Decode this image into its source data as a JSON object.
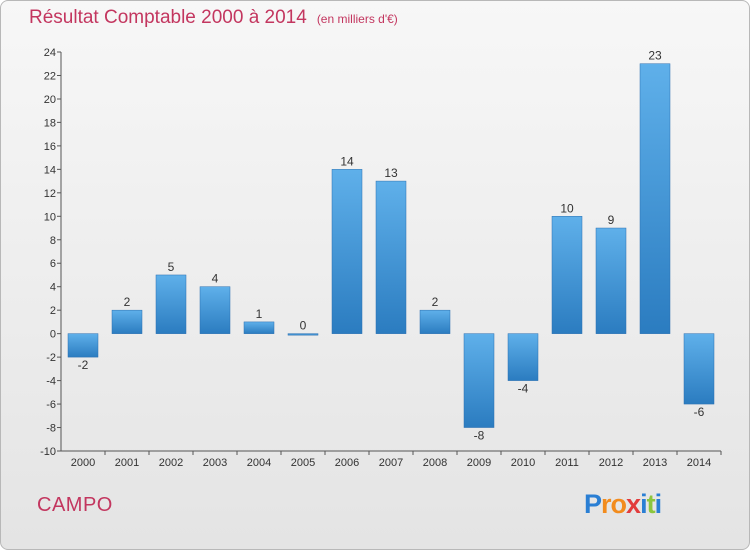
{
  "chart_data": {
    "type": "bar",
    "title": "Résultat Comptable 2000 à 2014",
    "subtitle": "(en milliers d'€)",
    "categories": [
      "2000",
      "2001",
      "2002",
      "2003",
      "2004",
      "2005",
      "2006",
      "2007",
      "2008",
      "2009",
      "2010",
      "2011",
      "2012",
      "2013",
      "2014"
    ],
    "values": [
      -2,
      2,
      5,
      4,
      1,
      0,
      14,
      13,
      2,
      -8,
      -4,
      10,
      9,
      23,
      -6
    ],
    "ylim": [
      -10,
      24
    ],
    "yticks": [
      -10,
      -8,
      -6,
      -4,
      -2,
      0,
      2,
      4,
      6,
      8,
      10,
      12,
      14,
      16,
      18,
      20,
      22,
      24
    ],
    "xlabel": "",
    "ylabel": "",
    "grid": false,
    "legend": "none",
    "bar_color": "#3a8fd3",
    "title_color": "#c3365f"
  },
  "commune": "CAMPO",
  "logo": {
    "letters": [
      "P",
      "r",
      "o",
      "x",
      "i",
      "t",
      "i"
    ],
    "colors": [
      "#2a7fd4",
      "#f28c1e",
      "#f28c1e",
      "#e23c3c",
      "#2a7fd4",
      "#8cc63e",
      "#2a7fd4"
    ]
  }
}
